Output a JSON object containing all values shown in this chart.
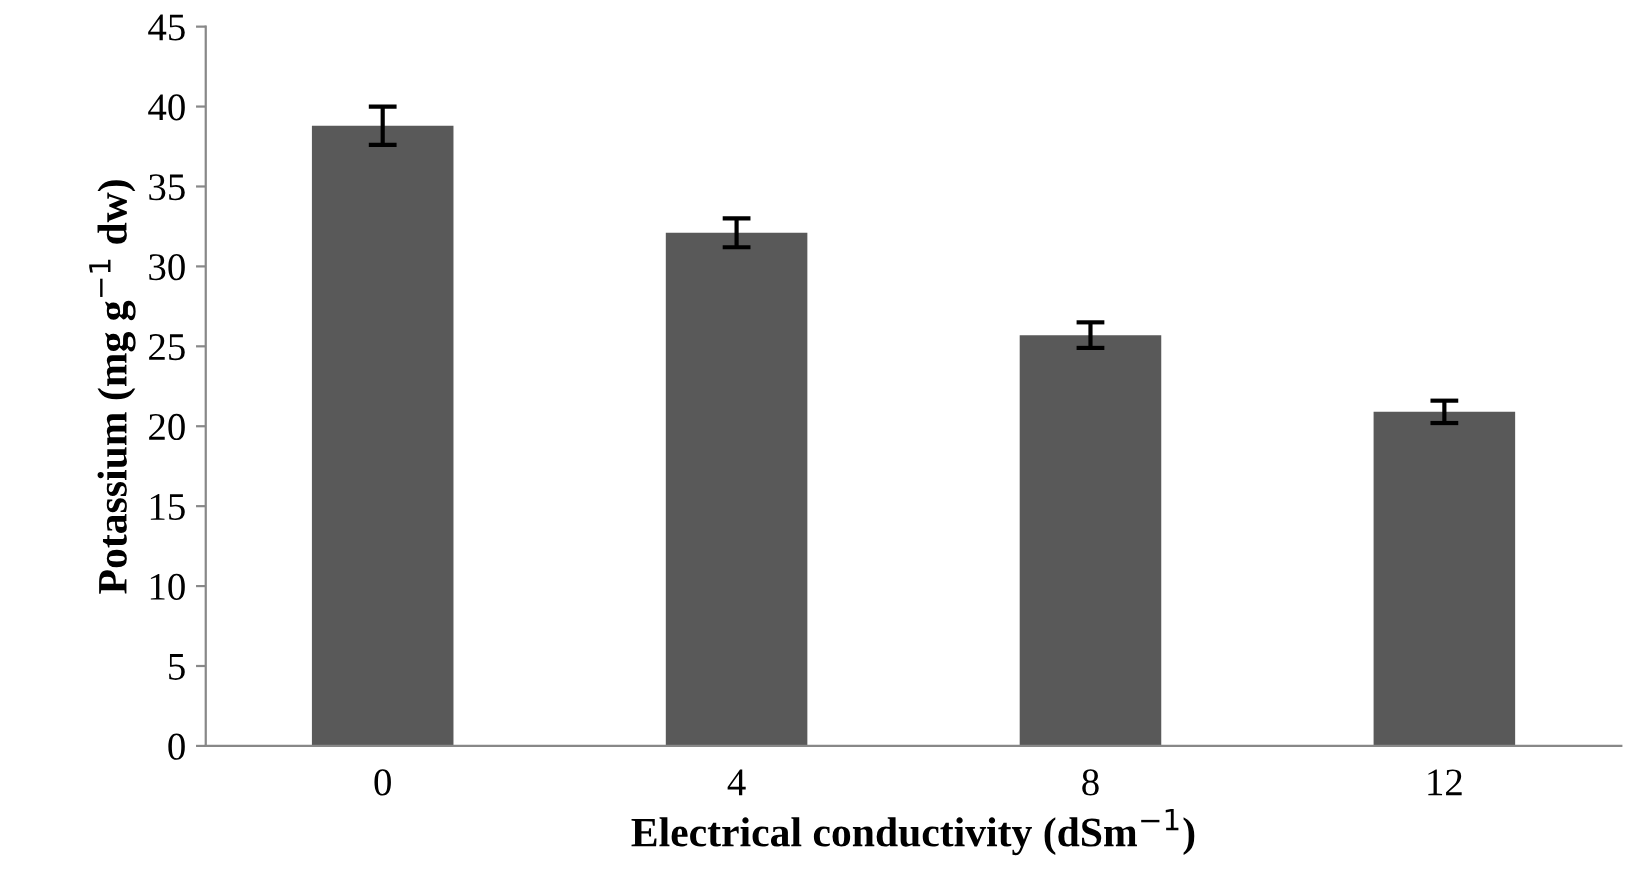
{
  "chart_data": {
    "type": "bar",
    "xlabel": "Electrical conductivity (dSm$^{−1}$)",
    "ylabel": "Potassium (mg g$^{−1}$ dw)",
    "categories": [
      "0",
      "4",
      "8",
      "12"
    ],
    "values": [
      38.8,
      32.1,
      25.7,
      20.9
    ],
    "errors": [
      1.2,
      0.9,
      0.8,
      0.7
    ],
    "color": "#595959",
    "ylim": [
      0,
      45
    ],
    "yticks": [
      0,
      5,
      10,
      15,
      20,
      25,
      30,
      35,
      40,
      45
    ],
    "grid": false,
    "legend": false
  }
}
